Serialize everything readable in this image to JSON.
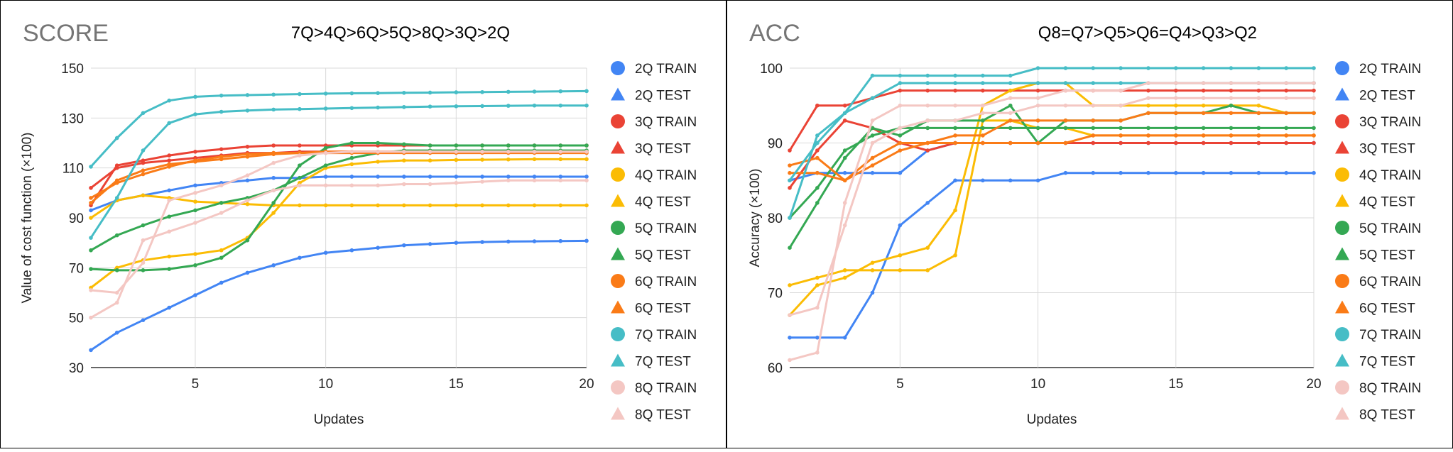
{
  "chart_data": [
    {
      "type": "line",
      "title": "SCORE",
      "subtitle": "7Q>4Q>6Q>5Q>8Q>3Q>2Q",
      "xlabel": "Updates",
      "ylabel": "Value of cost function (×100)",
      "xlim": [
        1,
        20
      ],
      "ylim": [
        30,
        150
      ],
      "xticks": [
        5,
        10,
        15,
        20
      ],
      "yticks": [
        30,
        50,
        70,
        90,
        110,
        130,
        150
      ],
      "x": [
        1,
        2,
        3,
        4,
        5,
        6,
        7,
        8,
        9,
        10,
        11,
        12,
        13,
        14,
        15,
        16,
        17,
        18,
        19,
        20
      ],
      "grid": true,
      "legend_position": "right",
      "series": [
        {
          "name": "2Q TRAIN",
          "color": "#4285f4",
          "marker": "circle",
          "values": [
            93,
            97,
            99,
            101,
            103,
            104,
            105,
            106,
            106,
            106.5,
            106.5,
            106.5,
            106.5,
            106.5,
            106.5,
            106.5,
            106.5,
            106.5,
            106.5,
            106.5
          ]
        },
        {
          "name": "2Q TEST",
          "color": "#4285f4",
          "marker": "triangle",
          "values": [
            37,
            44,
            49,
            54,
            59,
            64,
            68,
            71,
            74,
            76,
            77,
            78,
            79,
            79.5,
            80,
            80.3,
            80.5,
            80.6,
            80.7,
            80.8
          ]
        },
        {
          "name": "3Q TRAIN",
          "color": "#ea4335",
          "marker": "circle",
          "values": [
            95,
            111,
            113,
            115,
            116.5,
            117.5,
            118.5,
            119,
            119,
            119,
            119,
            119,
            119,
            119,
            119,
            119,
            119,
            119,
            119,
            119
          ]
        },
        {
          "name": "3Q TEST",
          "color": "#ea4335",
          "marker": "triangle",
          "values": [
            102,
            110,
            112,
            113,
            114,
            115,
            116,
            116,
            116.5,
            116.5,
            116.5,
            116.5,
            116.5,
            116.5,
            116.5,
            116.5,
            116.5,
            116.5,
            116.5,
            116.5
          ]
        },
        {
          "name": "4Q TRAIN",
          "color": "#fbbc04",
          "marker": "circle",
          "values": [
            62,
            70,
            73,
            74.5,
            75.5,
            77,
            82,
            92,
            104,
            110,
            111.5,
            112.5,
            113,
            113,
            113.2,
            113.3,
            113.4,
            113.5,
            113.5,
            113.5
          ]
        },
        {
          "name": "4Q TEST",
          "color": "#fbbc04",
          "marker": "triangle",
          "values": [
            90,
            97,
            99,
            98,
            96.5,
            96,
            95.5,
            95,
            95,
            95,
            95,
            95,
            95,
            95,
            95,
            95,
            95,
            95,
            95,
            95
          ]
        },
        {
          "name": "5Q TRAIN",
          "color": "#34a853",
          "marker": "circle",
          "values": [
            77,
            83,
            87,
            90.5,
            93,
            96,
            98,
            101,
            106,
            111,
            114,
            116,
            117,
            117,
            117,
            117,
            117,
            117,
            117,
            117
          ]
        },
        {
          "name": "5Q TEST",
          "color": "#34a853",
          "marker": "triangle",
          "values": [
            69.5,
            69,
            69,
            69.5,
            71,
            74,
            81,
            96,
            111,
            118,
            120,
            120,
            119.5,
            119,
            119,
            119,
            119,
            119,
            119,
            119
          ]
        },
        {
          "name": "6Q TRAIN",
          "color": "#fa7b17",
          "marker": "circle",
          "values": [
            98,
            104,
            107.5,
            110.5,
            113,
            114.5,
            115.5,
            116,
            116,
            116,
            116,
            116,
            116,
            116,
            116,
            116,
            116,
            116,
            116,
            116
          ]
        },
        {
          "name": "6Q TEST",
          "color": "#fa7b17",
          "marker": "triangle",
          "values": [
            96,
            105,
            109,
            111.5,
            112.5,
            113.5,
            114.5,
            115.5,
            116,
            116.5,
            116.5,
            116.5,
            116.5,
            116.5,
            116.5,
            116.5,
            116.5,
            116.5,
            116.5,
            116.5
          ]
        },
        {
          "name": "7Q TRAIN",
          "color": "#46bdc6",
          "marker": "circle",
          "values": [
            110.5,
            122,
            132,
            137,
            138.5,
            139,
            139.2,
            139.4,
            139.6,
            139.8,
            139.9,
            140,
            140.1,
            140.2,
            140.3,
            140.4,
            140.5,
            140.6,
            140.7,
            140.8
          ]
        },
        {
          "name": "7Q TEST",
          "color": "#46bdc6",
          "marker": "triangle",
          "values": [
            82,
            98,
            117,
            128,
            131.5,
            132.5,
            133,
            133.4,
            133.6,
            133.8,
            134,
            134.2,
            134.4,
            134.6,
            134.7,
            134.8,
            134.9,
            135,
            135,
            135
          ]
        },
        {
          "name": "8Q TRAIN",
          "color": "#f4c7c3",
          "marker": "circle",
          "values": [
            61,
            60,
            72,
            97,
            100,
            103,
            107,
            112,
            115,
            116,
            116.5,
            116.5,
            116.5,
            116.5,
            116.5,
            116.5,
            116.5,
            116.5,
            116.5,
            116.5
          ]
        },
        {
          "name": "8Q TEST",
          "color": "#f4c7c3",
          "marker": "triangle",
          "values": [
            50,
            56,
            81,
            84.5,
            88,
            92,
            97,
            101,
            103,
            103,
            103,
            103,
            103.5,
            103.5,
            104,
            104.5,
            105,
            105,
            105,
            105
          ]
        }
      ]
    },
    {
      "type": "line",
      "title": "ACC",
      "subtitle": "Q8=Q7>Q5>Q6=Q4>Q3>Q2",
      "xlabel": "Updates",
      "ylabel": "Accuracy (×100)",
      "xlim": [
        1,
        20
      ],
      "ylim": [
        60,
        100
      ],
      "xticks": [
        5,
        10,
        15,
        20
      ],
      "yticks": [
        60,
        70,
        80,
        90,
        100
      ],
      "x": [
        1,
        2,
        3,
        4,
        5,
        6,
        7,
        8,
        9,
        10,
        11,
        12,
        13,
        14,
        15,
        16,
        17,
        18,
        19,
        20
      ],
      "grid": true,
      "legend_position": "right",
      "series": [
        {
          "name": "2Q TRAIN",
          "color": "#4285f4",
          "marker": "circle",
          "values": [
            85,
            86,
            86,
            86,
            86,
            89,
            90,
            90,
            90,
            90,
            90,
            90,
            90,
            90,
            90,
            90,
            90,
            90,
            90,
            90
          ]
        },
        {
          "name": "2Q TEST",
          "color": "#4285f4",
          "marker": "triangle",
          "values": [
            64,
            64,
            64,
            70,
            79,
            82,
            85,
            85,
            85,
            85,
            86,
            86,
            86,
            86,
            86,
            86,
            86,
            86,
            86,
            86
          ]
        },
        {
          "name": "3Q TRAIN",
          "color": "#ea4335",
          "marker": "circle",
          "values": [
            89,
            95,
            95,
            96,
            97,
            97,
            97,
            97,
            97,
            97,
            97,
            97,
            97,
            97,
            97,
            97,
            97,
            97,
            97,
            97
          ]
        },
        {
          "name": "3Q TEST",
          "color": "#ea4335",
          "marker": "triangle",
          "values": [
            84,
            89,
            93,
            92,
            90,
            89,
            90,
            90,
            90,
            90,
            90,
            90,
            90,
            90,
            90,
            90,
            90,
            90,
            90,
            90
          ]
        },
        {
          "name": "4Q TRAIN",
          "color": "#fbbc04",
          "marker": "circle",
          "values": [
            67,
            71,
            72,
            74,
            75,
            76,
            81,
            95,
            97,
            98,
            98,
            95,
            95,
            95,
            95,
            95,
            95,
            95,
            94,
            94
          ]
        },
        {
          "name": "4Q TEST",
          "color": "#fbbc04",
          "marker": "triangle",
          "values": [
            71,
            72,
            73,
            73,
            73,
            73,
            75,
            93,
            93,
            92,
            92,
            91,
            91,
            91,
            91,
            91,
            91,
            91,
            91,
            91
          ]
        },
        {
          "name": "5Q TRAIN",
          "color": "#34a853",
          "marker": "circle",
          "values": [
            80,
            84,
            89,
            91,
            92,
            92,
            92,
            92,
            92,
            92,
            92,
            92,
            92,
            92,
            92,
            92,
            92,
            92,
            92,
            92
          ]
        },
        {
          "name": "5Q TEST",
          "color": "#34a853",
          "marker": "triangle",
          "values": [
            76,
            82,
            88,
            92,
            91,
            93,
            93,
            93,
            95,
            90,
            93,
            93,
            93,
            94,
            94,
            94,
            95,
            94,
            94,
            94
          ]
        },
        {
          "name": "6Q TRAIN",
          "color": "#fa7b17",
          "marker": "circle",
          "values": [
            87,
            88,
            85,
            87,
            89,
            90,
            90,
            90,
            90,
            90,
            90,
            91,
            91,
            91,
            91,
            91,
            91,
            91,
            91,
            91
          ]
        },
        {
          "name": "6Q TEST",
          "color": "#fa7b17",
          "marker": "triangle",
          "values": [
            86,
            86,
            85,
            88,
            90,
            90,
            91,
            91,
            93,
            93,
            93,
            93,
            93,
            94,
            94,
            94,
            94,
            94,
            94,
            94
          ]
        },
        {
          "name": "7Q TRAIN",
          "color": "#46bdc6",
          "marker": "circle",
          "values": [
            80,
            91,
            94,
            99,
            99,
            99,
            99,
            99,
            99,
            100,
            100,
            100,
            100,
            100,
            100,
            100,
            100,
            100,
            100,
            100
          ]
        },
        {
          "name": "7Q TEST",
          "color": "#46bdc6",
          "marker": "triangle",
          "values": [
            85,
            90,
            94,
            96,
            98,
            98,
            98,
            98,
            98,
            98,
            98,
            98,
            98,
            98,
            98,
            98,
            98,
            98,
            98,
            98
          ]
        },
        {
          "name": "8Q TRAIN",
          "color": "#f4c7c3",
          "marker": "circle",
          "values": [
            61,
            62,
            82,
            93,
            95,
            95,
            95,
            95,
            96,
            96,
            97,
            97,
            97,
            98,
            98,
            98,
            98,
            98,
            98,
            98
          ]
        },
        {
          "name": "8Q TEST",
          "color": "#f4c7c3",
          "marker": "triangle",
          "values": [
            67,
            68,
            79,
            90,
            92,
            93,
            93,
            94,
            94,
            95,
            95,
            95,
            95,
            96,
            96,
            96,
            96,
            96,
            96,
            96
          ]
        }
      ]
    }
  ]
}
